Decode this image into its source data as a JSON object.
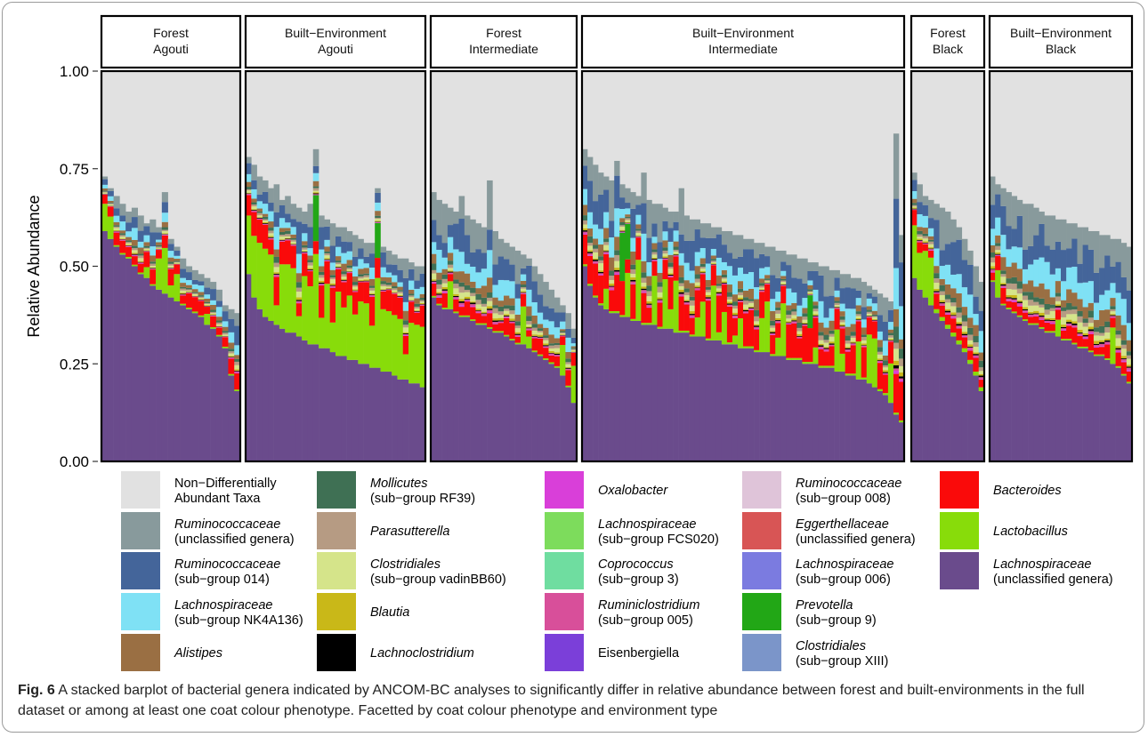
{
  "chart_data": {
    "type": "bar",
    "stacked": true,
    "ylabel": "Relative Abundance",
    "ylim": [
      0,
      1
    ],
    "yticks": [
      "0.00",
      "0.25",
      "0.50",
      "0.75",
      "1.00"
    ],
    "grid": false,
    "legend_position": "bottom",
    "facets": [
      {
        "label_line1": "Forest",
        "label_line2": "Agouti",
        "n_samples": 23,
        "lach_unclassified": [
          0.59,
          0.57,
          0.55,
          0.53,
          0.52,
          0.5,
          0.48,
          0.47,
          0.45,
          0.44,
          0.43,
          0.42,
          0.41,
          0.4,
          0.39,
          0.38,
          0.37,
          0.35,
          0.34,
          0.32,
          0.29,
          0.22,
          0.18
        ],
        "top_total": [
          0.73,
          0.7,
          0.68,
          0.66,
          0.64,
          0.65,
          0.63,
          0.61,
          0.62,
          0.6,
          0.69,
          0.57,
          0.55,
          0.52,
          0.5,
          0.49,
          0.48,
          0.47,
          0.46,
          0.44,
          0.4,
          0.39,
          0.38
        ]
      },
      {
        "label_line1": "Built−Environment",
        "label_line2": "Agouti",
        "n_samples": 32,
        "lach_unclassified": [
          0.48,
          0.42,
          0.39,
          0.37,
          0.36,
          0.35,
          0.34,
          0.33,
          0.33,
          0.32,
          0.31,
          0.3,
          0.3,
          0.29,
          0.29,
          0.28,
          0.27,
          0.27,
          0.26,
          0.26,
          0.25,
          0.25,
          0.24,
          0.24,
          0.23,
          0.23,
          0.22,
          0.21,
          0.21,
          0.2,
          0.2,
          0.19
        ],
        "top_total": [
          0.78,
          0.76,
          0.73,
          0.72,
          0.7,
          0.71,
          0.67,
          0.68,
          0.66,
          0.65,
          0.64,
          0.66,
          0.8,
          0.63,
          0.62,
          0.61,
          0.6,
          0.6,
          0.59,
          0.58,
          0.57,
          0.56,
          0.56,
          0.7,
          0.55,
          0.54,
          0.53,
          0.52,
          0.52,
          0.51,
          0.5,
          0.5
        ]
      },
      {
        "label_line1": "Forest",
        "label_line2": "Intermediate",
        "n_samples": 26,
        "lach_unclassified": [
          0.42,
          0.4,
          0.39,
          0.39,
          0.38,
          0.37,
          0.37,
          0.36,
          0.35,
          0.35,
          0.34,
          0.33,
          0.33,
          0.32,
          0.31,
          0.3,
          0.3,
          0.29,
          0.28,
          0.27,
          0.26,
          0.25,
          0.24,
          0.22,
          0.19,
          0.15
        ],
        "top_total": [
          0.69,
          0.67,
          0.66,
          0.65,
          0.64,
          0.68,
          0.63,
          0.62,
          0.61,
          0.6,
          0.72,
          0.59,
          0.57,
          0.56,
          0.55,
          0.54,
          0.53,
          0.52,
          0.5,
          0.48,
          0.46,
          0.44,
          0.42,
          0.4,
          0.38,
          0.34
        ]
      },
      {
        "label_line1": "Built−Environment",
        "label_line2": "Intermediate",
        "n_samples": 60,
        "lach_unclassified": [
          0.5,
          0.45,
          0.42,
          0.4,
          0.39,
          0.38,
          0.38,
          0.37,
          0.37,
          0.36,
          0.36,
          0.35,
          0.35,
          0.35,
          0.34,
          0.34,
          0.34,
          0.33,
          0.33,
          0.33,
          0.32,
          0.32,
          0.32,
          0.31,
          0.31,
          0.31,
          0.3,
          0.3,
          0.3,
          0.29,
          0.29,
          0.29,
          0.28,
          0.28,
          0.28,
          0.27,
          0.27,
          0.27,
          0.26,
          0.26,
          0.26,
          0.25,
          0.25,
          0.25,
          0.24,
          0.24,
          0.24,
          0.23,
          0.23,
          0.22,
          0.22,
          0.21,
          0.21,
          0.2,
          0.19,
          0.18,
          0.17,
          0.15,
          0.12,
          0.1
        ],
        "top_total": [
          0.8,
          0.78,
          0.76,
          0.74,
          0.73,
          0.72,
          0.77,
          0.71,
          0.7,
          0.69,
          0.68,
          0.74,
          0.67,
          0.66,
          0.66,
          0.65,
          0.64,
          0.64,
          0.7,
          0.63,
          0.62,
          0.62,
          0.61,
          0.61,
          0.6,
          0.6,
          0.59,
          0.59,
          0.58,
          0.58,
          0.57,
          0.57,
          0.56,
          0.56,
          0.55,
          0.55,
          0.54,
          0.54,
          0.53,
          0.53,
          0.52,
          0.52,
          0.51,
          0.51,
          0.5,
          0.5,
          0.49,
          0.49,
          0.48,
          0.48,
          0.47,
          0.47,
          0.46,
          0.45,
          0.44,
          0.43,
          0.42,
          0.41,
          0.84,
          0.58
        ]
      },
      {
        "label_line1": "Forest",
        "label_line2": "Black",
        "n_samples": 13,
        "lach_unclassified": [
          0.47,
          0.44,
          0.42,
          0.4,
          0.38,
          0.36,
          0.34,
          0.32,
          0.3,
          0.28,
          0.25,
          0.22,
          0.18
        ],
        "top_total": [
          0.74,
          0.71,
          0.68,
          0.67,
          0.66,
          0.65,
          0.64,
          0.62,
          0.6,
          0.57,
          0.54,
          0.5,
          0.46
        ]
      },
      {
        "label_line1": "Built−Environment",
        "label_line2": "Black",
        "n_samples": 26,
        "lach_unclassified": [
          0.46,
          0.42,
          0.4,
          0.39,
          0.38,
          0.37,
          0.36,
          0.35,
          0.35,
          0.34,
          0.33,
          0.33,
          0.32,
          0.31,
          0.31,
          0.3,
          0.29,
          0.29,
          0.28,
          0.27,
          0.27,
          0.26,
          0.25,
          0.24,
          0.22,
          0.2
        ],
        "top_total": [
          0.73,
          0.71,
          0.7,
          0.69,
          0.68,
          0.67,
          0.66,
          0.66,
          0.65,
          0.64,
          0.63,
          0.63,
          0.62,
          0.62,
          0.61,
          0.61,
          0.6,
          0.6,
          0.59,
          0.59,
          0.58,
          0.58,
          0.57,
          0.57,
          0.56,
          0.55
        ]
      }
    ],
    "legend": [
      {
        "line1": "Non−Differentially",
        "line2": "Abundant Taxa",
        "italic_line1": false,
        "color": "#e1e1e1"
      },
      {
        "line1": "Ruminococcaceae",
        "line2": "(unclassified genera)",
        "italic_line1": true,
        "color": "#889a9c"
      },
      {
        "line1": "Ruminococcaceae",
        "line2": "(sub−group 014)",
        "italic_line1": true,
        "color": "#44659a"
      },
      {
        "line1": "Lachnospiraceae",
        "line2": "(sub−group NK4A136)",
        "italic_line1": true,
        "color": "#7fe1f5"
      },
      {
        "line1": "Alistipes",
        "line2": "",
        "italic_line1": true,
        "color": "#9a6f43"
      },
      {
        "line1": "Mollicutes",
        "line2": "(sub−group RF39)",
        "italic_line1": true,
        "color": "#3f7054"
      },
      {
        "line1": "Parasutterella",
        "line2": "",
        "italic_line1": true,
        "color": "#b69b83"
      },
      {
        "line1": "Clostridiales",
        "line2": "(sub−group vadinBB60)",
        "italic_line1": true,
        "color": "#d5e48a"
      },
      {
        "line1": "Blautia",
        "line2": "",
        "italic_line1": true,
        "color": "#c9b818"
      },
      {
        "line1": "Lachnoclostridium",
        "line2": "",
        "italic_line1": true,
        "color": "#000000"
      },
      {
        "line1": "Oxalobacter",
        "line2": "",
        "italic_line1": true,
        "color": "#d93fd9"
      },
      {
        "line1": "Lachnospiraceae",
        "line2": "(sub−group FCS020)",
        "italic_line1": true,
        "color": "#7ddc5c"
      },
      {
        "line1": "Coprococcus",
        "line2": "(sub−group 3)",
        "italic_line1": true,
        "color": "#6fdda0"
      },
      {
        "line1": "Ruminiclostridium",
        "line2": "(sub−group 005)",
        "italic_line1": true,
        "color": "#d84f9a"
      },
      {
        "line1": "Eisenbergiella",
        "line2": "",
        "italic_line1": false,
        "color": "#7b3fd9"
      },
      {
        "line1": "Ruminococcaceae",
        "line2": "(sub−group 008)",
        "italic_line1": true,
        "color": "#dfc4d9"
      },
      {
        "line1": "Eggerthellaceae",
        "line2": "(unclassified genera)",
        "italic_line1": true,
        "color": "#d85555"
      },
      {
        "line1": "Lachnospiraceae",
        "line2": "(sub−group 006)",
        "italic_line1": true,
        "color": "#7b7be0"
      },
      {
        "line1": "Prevotella",
        "line2": "(sub−group 9)",
        "italic_line1": true,
        "color": "#22a716"
      },
      {
        "line1": "Clostridiales",
        "line2": "(sub−group XIII)",
        "italic_line1": true,
        "color": "#7b95c9"
      },
      {
        "line1": "Bacteroides",
        "line2": "",
        "italic_line1": true,
        "color": "#fa0a0a"
      },
      {
        "line1": "Lactobacillus",
        "line2": "",
        "italic_line1": true,
        "color": "#88dc0a"
      },
      {
        "line1": "Lachnospiraceae",
        "line2": "(unclassified genera)",
        "italic_line1": true,
        "color": "#6a4b8c"
      }
    ]
  },
  "caption": {
    "label": "Fig. 6",
    "text": " A stacked barplot of bacterial genera indicated by ANCOM-BC analyses to significantly differ in relative abundance between forest and built-environments in the full dataset or among at least one coat colour phenotype. Facetted by coat colour phenotype and environment type"
  }
}
